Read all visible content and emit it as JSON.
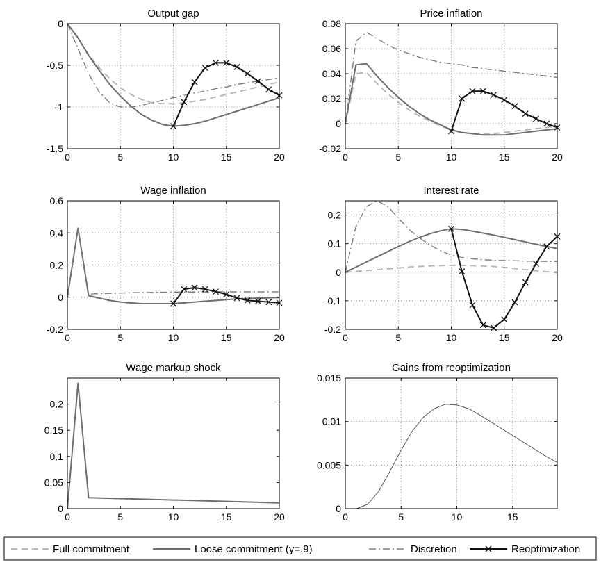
{
  "colors": {
    "full_commitment": "#b8b8b8",
    "loose_commitment": "#6e6e6e",
    "discretion": "#7a7a7a",
    "reoptimization": "#111111",
    "gains": "#555555",
    "grid": "#888888",
    "axis": "#000000"
  },
  "legend": {
    "position": "bottom",
    "items": [
      {
        "label": "Full commitment",
        "style": "dashed"
      },
      {
        "label": "Loose commitment (γ=.9)",
        "style": "solid"
      },
      {
        "label": "Discretion",
        "style": "dashdot"
      },
      {
        "label": "Reoptimization",
        "style": "solid-x-markers"
      }
    ]
  },
  "chart_data": [
    {
      "type": "line",
      "title": "Output gap",
      "xlim": [
        0,
        20
      ],
      "ylim": [
        -1.5,
        0
      ],
      "xticks": [
        "0",
        "5",
        "10",
        "15",
        "20"
      ],
      "yticks": [
        "0",
        "-0.5",
        "-1",
        "-1.5"
      ],
      "ytick_values": [
        0,
        -0.5,
        -1,
        -1.5
      ],
      "grid": true,
      "series": [
        {
          "name": "Full commitment",
          "style": "dashed",
          "x": [
            0,
            1,
            2,
            3,
            4,
            5,
            6,
            7,
            8,
            9,
            10,
            11,
            12,
            13,
            14,
            15,
            16,
            17,
            18,
            19,
            20
          ],
          "y": [
            0,
            -0.18,
            -0.37,
            -0.53,
            -0.66,
            -0.77,
            -0.85,
            -0.91,
            -0.95,
            -0.96,
            -0.96,
            -0.95,
            -0.93,
            -0.91,
            -0.88,
            -0.85,
            -0.82,
            -0.79,
            -0.76,
            -0.73,
            -0.7
          ]
        },
        {
          "name": "Loose commitment (γ=.9)",
          "style": "solid",
          "x": [
            0,
            1,
            2,
            3,
            4,
            5,
            6,
            7,
            8,
            9,
            10,
            11,
            12,
            13,
            14,
            15,
            16,
            17,
            18,
            19,
            20
          ],
          "y": [
            0,
            -0.17,
            -0.38,
            -0.56,
            -0.73,
            -0.87,
            -0.99,
            -1.09,
            -1.16,
            -1.21,
            -1.23,
            -1.22,
            -1.2,
            -1.17,
            -1.13,
            -1.09,
            -1.05,
            -1.01,
            -0.97,
            -0.93,
            -0.89
          ]
        },
        {
          "name": "Discretion",
          "style": "dashdot",
          "x": [
            0,
            1,
            2,
            3,
            4,
            5,
            6,
            7,
            8,
            9,
            10,
            11,
            12,
            13,
            14,
            15,
            16,
            17,
            18,
            19,
            20
          ],
          "y": [
            0,
            -0.3,
            -0.6,
            -0.82,
            -0.95,
            -1.0,
            -1.0,
            -0.98,
            -0.95,
            -0.92,
            -0.89,
            -0.86,
            -0.83,
            -0.81,
            -0.78,
            -0.76,
            -0.73,
            -0.71,
            -0.69,
            -0.67,
            -0.65
          ]
        },
        {
          "name": "Reoptimization",
          "style": "solid-x-markers",
          "x": [
            10,
            11,
            12,
            13,
            14,
            15,
            16,
            17,
            18,
            19,
            20
          ],
          "y": [
            -1.23,
            -0.94,
            -0.7,
            -0.53,
            -0.47,
            -0.47,
            -0.52,
            -0.6,
            -0.69,
            -0.79,
            -0.86
          ]
        }
      ]
    },
    {
      "type": "line",
      "title": "Price inflation",
      "xlim": [
        0,
        20
      ],
      "ylim": [
        -0.02,
        0.08
      ],
      "xticks": [
        "0",
        "5",
        "10",
        "15",
        "20"
      ],
      "yticks": [
        "0.08",
        "0.06",
        "0.04",
        "0.02",
        "0",
        "-0.02"
      ],
      "ytick_values": [
        0.08,
        0.06,
        0.04,
        0.02,
        0,
        -0.02
      ],
      "grid": true,
      "series": [
        {
          "name": "Full commitment",
          "style": "dashed",
          "x": [
            0,
            1,
            2,
            3,
            4,
            5,
            6,
            7,
            8,
            9,
            10,
            11,
            12,
            13,
            14,
            15,
            16,
            17,
            18,
            19,
            20
          ],
          "y": [
            0,
            0.04,
            0.041,
            0.032,
            0.024,
            0.017,
            0.011,
            0.006,
            0.002,
            -0.002,
            -0.005,
            -0.007,
            -0.008,
            -0.008,
            -0.008,
            -0.007,
            -0.006,
            -0.005,
            -0.004,
            -0.003,
            -0.002
          ]
        },
        {
          "name": "Loose commitment (γ=.9)",
          "style": "solid",
          "x": [
            0,
            1,
            2,
            3,
            4,
            5,
            6,
            7,
            8,
            9,
            10,
            11,
            12,
            13,
            14,
            15,
            16,
            17,
            18,
            19,
            20
          ],
          "y": [
            0,
            0.047,
            0.048,
            0.038,
            0.029,
            0.021,
            0.014,
            0.008,
            0.003,
            -0.001,
            -0.005,
            -0.007,
            -0.008,
            -0.009,
            -0.009,
            -0.009,
            -0.008,
            -0.007,
            -0.006,
            -0.005,
            -0.004
          ]
        },
        {
          "name": "Discretion",
          "style": "dashdot",
          "x": [
            0,
            1,
            2,
            3,
            4,
            5,
            6,
            7,
            8,
            9,
            10,
            11,
            12,
            13,
            14,
            15,
            16,
            17,
            18,
            19,
            20
          ],
          "y": [
            0,
            0.066,
            0.073,
            0.068,
            0.063,
            0.059,
            0.056,
            0.053,
            0.051,
            0.049,
            0.048,
            0.047,
            0.045,
            0.044,
            0.043,
            0.042,
            0.041,
            0.04,
            0.039,
            0.038,
            0.037
          ]
        },
        {
          "name": "Reoptimization",
          "style": "solid-x-markers",
          "x": [
            10,
            11,
            12,
            13,
            14,
            15,
            16,
            17,
            18,
            19,
            20
          ],
          "y": [
            -0.006,
            0.02,
            0.026,
            0.026,
            0.023,
            0.019,
            0.014,
            0.008,
            0.004,
            0.0,
            -0.003
          ]
        }
      ]
    },
    {
      "type": "line",
      "title": "Wage inflation",
      "xlim": [
        0,
        20
      ],
      "ylim": [
        -0.2,
        0.6
      ],
      "xticks": [
        "0",
        "5",
        "10",
        "15",
        "20"
      ],
      "yticks": [
        "0.6",
        "0.4",
        "0.2",
        "0",
        "-0.2"
      ],
      "ytick_values": [
        0.6,
        0.4,
        0.2,
        0,
        -0.2
      ],
      "grid": true,
      "series": [
        {
          "name": "Full commitment",
          "style": "dashed",
          "x": [
            0,
            1,
            2,
            3,
            4,
            5,
            6,
            7,
            8,
            9,
            10,
            11,
            12,
            13,
            14,
            15,
            16,
            17,
            18,
            19,
            20
          ],
          "y": [
            0,
            0.43,
            0.01,
            -0.01,
            -0.02,
            -0.03,
            -0.04,
            -0.04,
            -0.04,
            -0.04,
            -0.04,
            -0.035,
            -0.03,
            -0.025,
            -0.02,
            -0.015,
            -0.01,
            -0.008,
            -0.006,
            -0.004,
            -0.002
          ]
        },
        {
          "name": "Loose commitment (γ=.9)",
          "style": "solid",
          "x": [
            0,
            1,
            2,
            3,
            4,
            5,
            6,
            7,
            8,
            9,
            10,
            11,
            12,
            13,
            14,
            15,
            16,
            17,
            18,
            19,
            20
          ],
          "y": [
            0,
            0.43,
            0.01,
            -0.005,
            -0.02,
            -0.03,
            -0.035,
            -0.04,
            -0.04,
            -0.04,
            -0.04,
            -0.035,
            -0.03,
            -0.025,
            -0.02,
            -0.015,
            -0.01,
            -0.008,
            -0.006,
            -0.004,
            -0.002
          ]
        },
        {
          "name": "Discretion",
          "style": "dashdot",
          "x": [
            0,
            1,
            2,
            3,
            4,
            5,
            6,
            7,
            8,
            9,
            10,
            11,
            12,
            13,
            14,
            15,
            16,
            17,
            18,
            19,
            20
          ],
          "y": [
            0,
            0.43,
            0.02,
            0.022,
            0.024,
            0.026,
            0.028,
            0.029,
            0.03,
            0.031,
            0.032,
            0.032,
            0.033,
            0.033,
            0.034,
            0.034,
            0.034,
            0.034,
            0.034,
            0.034,
            0.034
          ]
        },
        {
          "name": "Reoptimization",
          "style": "solid-x-markers",
          "x": [
            10,
            11,
            12,
            13,
            14,
            15,
            16,
            17,
            18,
            19,
            20
          ],
          "y": [
            -0.04,
            0.05,
            0.06,
            0.05,
            0.035,
            0.018,
            -0.005,
            -0.02,
            -0.025,
            -0.03,
            -0.035
          ]
        }
      ]
    },
    {
      "type": "line",
      "title": "Interest rate",
      "xlim": [
        0,
        20
      ],
      "ylim": [
        -0.2,
        0.25
      ],
      "xticks": [
        "0",
        "5",
        "10",
        "15",
        "20"
      ],
      "yticks": [
        "0.2",
        "0.1",
        "0",
        "-0.1",
        "-0.2"
      ],
      "ytick_values": [
        0.2,
        0.1,
        0,
        -0.1,
        -0.2
      ],
      "grid": true,
      "series": [
        {
          "name": "Full commitment",
          "style": "dashed",
          "x": [
            0,
            1,
            2,
            3,
            4,
            5,
            6,
            7,
            8,
            9,
            10,
            11,
            12,
            13,
            14,
            15,
            16,
            17,
            18,
            19,
            20
          ],
          "y": [
            0,
            0.003,
            0.006,
            0.009,
            0.012,
            0.015,
            0.018,
            0.02,
            0.022,
            0.023,
            0.024,
            0.024,
            0.023,
            0.022,
            0.02,
            0.017,
            0.013,
            0.009,
            0.005,
            0.002,
            0.0
          ]
        },
        {
          "name": "Loose commitment (γ=.9)",
          "style": "solid",
          "x": [
            0,
            1,
            2,
            3,
            4,
            5,
            6,
            7,
            8,
            9,
            10,
            11,
            12,
            13,
            14,
            15,
            16,
            17,
            18,
            19,
            20
          ],
          "y": [
            0,
            0.018,
            0.036,
            0.054,
            0.072,
            0.09,
            0.107,
            0.122,
            0.135,
            0.145,
            0.152,
            0.15,
            0.144,
            0.137,
            0.13,
            0.122,
            0.114,
            0.106,
            0.098,
            0.09,
            0.083
          ]
        },
        {
          "name": "Discretion",
          "style": "dashdot",
          "x": [
            0,
            1,
            2,
            3,
            4,
            5,
            6,
            7,
            8,
            9,
            10,
            11,
            12,
            13,
            14,
            15,
            16,
            17,
            18,
            19,
            20
          ],
          "y": [
            0,
            0.16,
            0.23,
            0.25,
            0.23,
            0.19,
            0.15,
            0.12,
            0.095,
            0.075,
            0.06,
            0.052,
            0.047,
            0.044,
            0.042,
            0.041,
            0.04,
            0.039,
            0.039,
            0.038,
            0.038
          ]
        },
        {
          "name": "Reoptimization",
          "style": "solid-x-markers",
          "x": [
            10,
            11,
            12,
            13,
            14,
            15,
            16,
            17,
            18,
            19,
            20
          ],
          "y": [
            0.152,
            0.003,
            -0.115,
            -0.185,
            -0.195,
            -0.165,
            -0.105,
            -0.035,
            0.03,
            0.09,
            0.125
          ]
        }
      ]
    },
    {
      "type": "line",
      "title": "Wage markup shock",
      "xlim": [
        0,
        20
      ],
      "ylim": [
        0,
        0.25
      ],
      "xticks": [
        "0",
        "5",
        "10",
        "15",
        "20"
      ],
      "yticks": [
        "0.2",
        "0.15",
        "0.1",
        "0.05",
        "0"
      ],
      "ytick_values": [
        0.2,
        0.15,
        0.1,
        0.05,
        0
      ],
      "grid": false,
      "series": [
        {
          "name": "",
          "style": "solid",
          "x": [
            0,
            1,
            2,
            20
          ],
          "y": [
            0,
            0.24,
            0.021,
            0.011
          ]
        }
      ]
    },
    {
      "type": "line",
      "title": "Gains from reoptimization",
      "xlim": [
        0,
        19
      ],
      "ylim": [
        0,
        0.015
      ],
      "xticks": [
        "0",
        "5",
        "10",
        "15"
      ],
      "yticks": [
        "0.015",
        "0.01",
        "0.005",
        "0"
      ],
      "ytick_values": [
        0.015,
        0.01,
        0.005,
        0
      ],
      "xtick_values": [
        0,
        5,
        10,
        15
      ],
      "grid": true,
      "series": [
        {
          "name": "",
          "style": "thin",
          "x": [
            1,
            2,
            3,
            4,
            5,
            6,
            7,
            8,
            9,
            10,
            11,
            12,
            13,
            14,
            15,
            16,
            17,
            18,
            19
          ],
          "y": [
            0,
            0.0005,
            0.002,
            0.0043,
            0.0067,
            0.0089,
            0.0105,
            0.0115,
            0.012,
            0.0119,
            0.0115,
            0.0108,
            0.01,
            0.0092,
            0.0084,
            0.0076,
            0.0068,
            0.006,
            0.0053
          ]
        }
      ]
    }
  ]
}
